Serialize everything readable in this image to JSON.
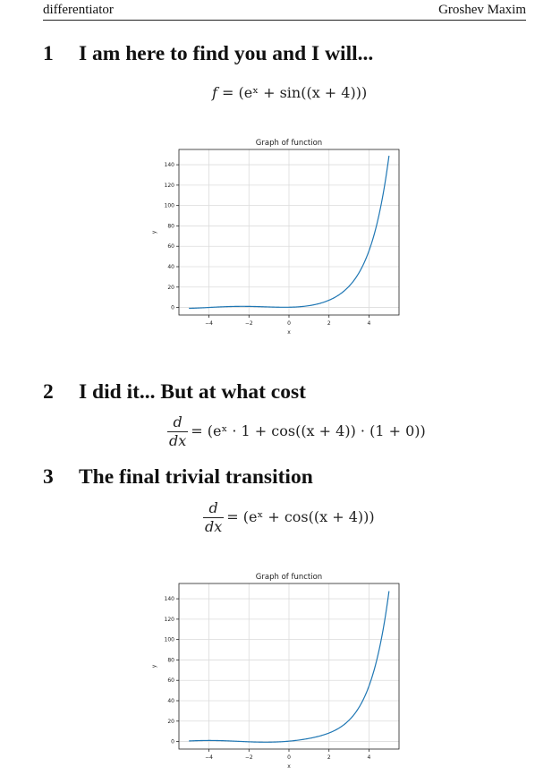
{
  "header": {
    "left": "differentiator",
    "right": "Groshev Maxim"
  },
  "sections": [
    {
      "number": "1",
      "title": "I am here to find you and I will..."
    },
    {
      "number": "2",
      "title": "I did it... But at what cost"
    },
    {
      "number": "3",
      "title": "The final trivial transition"
    }
  ],
  "formulas": {
    "f_lhs": "f",
    "f_rhs": "= (eˣ + sin((x + 4)))",
    "d1_num": "d",
    "d1_den": "dx",
    "d1_rhs": "= (eˣ · 1 + cos((x + 4)) · (1 + 0))",
    "d2_num": "d",
    "d2_den": "dx",
    "d2_rhs": "= (eˣ + cos((x + 4)))"
  },
  "chart_data": [
    {
      "type": "line",
      "title": "Graph of function",
      "xlabel": "x",
      "ylabel": "y",
      "function": "exp(x) + sin(x + 4)",
      "x_range": [
        -5,
        5
      ],
      "xlim": [
        -5.5,
        5.5
      ],
      "ylim": [
        -7.4,
        155
      ],
      "xticks": [
        -4,
        -2,
        0,
        2,
        4
      ],
      "yticks": [
        0,
        20,
        40,
        60,
        80,
        100,
        120,
        140
      ],
      "xtick_labels": [
        "−4",
        "−2",
        "0",
        "2",
        "4"
      ],
      "ytick_labels": [
        "0",
        "20",
        "40",
        "60",
        "80",
        "100",
        "120",
        "140"
      ],
      "grid": true,
      "color": "#1f77b4"
    },
    {
      "type": "line",
      "title": "Graph of function",
      "xlabel": "x",
      "ylabel": "y",
      "function": "exp(x) + cos(x + 4)",
      "x_range": [
        -5,
        5
      ],
      "xlim": [
        -5.5,
        5.5
      ],
      "ylim": [
        -7.4,
        155
      ],
      "xticks": [
        -4,
        -2,
        0,
        2,
        4
      ],
      "yticks": [
        0,
        20,
        40,
        60,
        80,
        100,
        120,
        140
      ],
      "xtick_labels": [
        "−4",
        "−2",
        "0",
        "2",
        "4"
      ],
      "ytick_labels": [
        "0",
        "20",
        "40",
        "60",
        "80",
        "100",
        "120",
        "140"
      ],
      "grid": true,
      "color": "#1f77b4"
    }
  ]
}
